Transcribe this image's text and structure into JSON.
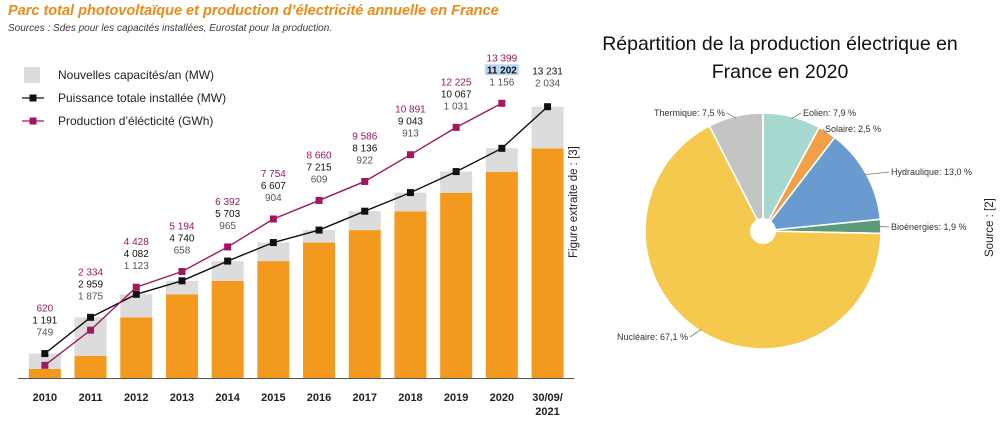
{
  "left_chart": {
    "title": "Parc total photovoltaïque et production d’électricité annuelle en France",
    "source": "Sources : Sdes pour les capacités installées, Eurostat pour la production.",
    "legend": [
      {
        "key": "new",
        "label": "Nouvelles capacités/an (MW)"
      },
      {
        "key": "total",
        "label": "Puissance totale installée (MW)"
      },
      {
        "key": "prod",
        "label": "Production d’élécticité (GWh)"
      }
    ]
  },
  "right_chart": {
    "title": "Répartition de la production électrique en France en 2020",
    "figure_note": "Figure extraite de : [3]",
    "source_note": "Source : [2]"
  },
  "colors": {
    "orange": "#f39a1e",
    "grey": "#dcdcdc",
    "black": "#111111",
    "purple": "#a2175f",
    "title_orange": "#ef8a17"
  },
  "chart_data": [
    {
      "type": "bar",
      "categories": [
        "2010",
        "2011",
        "2012",
        "2013",
        "2014",
        "2015",
        "2016",
        "2017",
        "2018",
        "2019",
        "2020",
        "30/09/ 2021"
      ],
      "series": [
        {
          "name": "Nouvelles capacités/an (MW)",
          "labels": [
            "749",
            "1 875",
            "1 123",
            "658",
            "965",
            "904",
            "609",
            "922",
            "913",
            "1 031",
            "1 156",
            "2 034"
          ],
          "values": [
            749,
            1875,
            1123,
            658,
            965,
            904,
            609,
            922,
            913,
            1031,
            1156,
            2034
          ]
        },
        {
          "name": "Puissance totale installée (MW)",
          "labels": [
            "1 191",
            "2 959",
            "4 082",
            "4 740",
            "5 703",
            "6 607",
            "7 215",
            "8 136",
            "9 043",
            "10 067",
            "11 202",
            "13 231"
          ],
          "values": [
            1191,
            2959,
            4082,
            4740,
            5703,
            6607,
            7215,
            8136,
            9043,
            10067,
            11202,
            13231
          ]
        },
        {
          "name": "Production d’élécticité (GWh)",
          "labels": [
            "620",
            "2 334",
            "4 428",
            "5 194",
            "6 392",
            "7 754",
            "8 660",
            "9 586",
            "10 891",
            "12 225",
            "13 399",
            null
          ],
          "values": [
            620,
            2334,
            4428,
            5194,
            6392,
            7754,
            8660,
            9586,
            10891,
            12225,
            13399,
            null
          ]
        }
      ]
    },
    {
      "type": "pie",
      "slices": [
        {
          "label": "Eolien: 7,9 %",
          "value": 7.9,
          "color": "#a6d8cf"
        },
        {
          "label": "Solaire: 2,5 %",
          "value": 2.5,
          "color": "#f2a047"
        },
        {
          "label": "Hydraulique: 13,0 %",
          "value": 13.0,
          "color": "#6a9bd0"
        },
        {
          "label": "Bioénergies: 1,9 %",
          "value": 1.9,
          "color": "#5e9a7a"
        },
        {
          "label": "Nucléaire: 67,1 %",
          "value": 67.1,
          "color": "#f5c94e"
        },
        {
          "label": "Thermique: 7,5 %",
          "value": 7.5,
          "color": "#c4c4c4"
        }
      ]
    }
  ]
}
